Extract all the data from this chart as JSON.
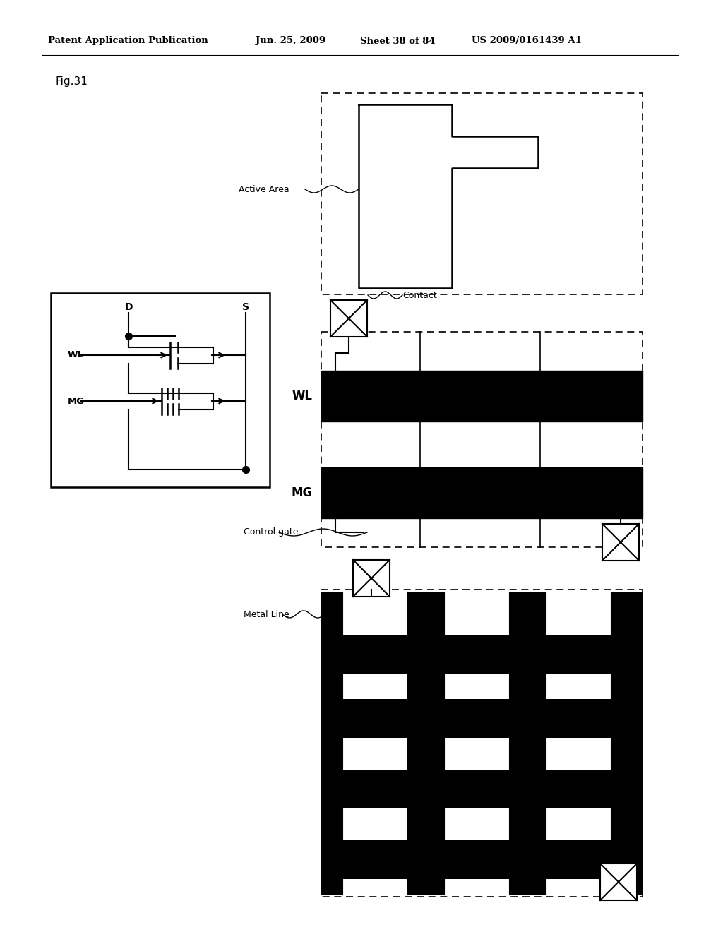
{
  "bg_color": "#ffffff",
  "header_text": "Patent Application Publication",
  "header_date": "Jun. 25, 2009",
  "header_sheet": "Sheet 38 of 84",
  "header_patent": "US 2009/0161439 A1",
  "fig_label": "Fig.31",
  "active_area_label": "Active Area",
  "contact_label": "Contact",
  "wl_label": "WL",
  "mg_label": "MG",
  "control_gate_label": "Control gate",
  "metal_line_label": "Metal Line",
  "D_label": "D",
  "S_label": "S"
}
